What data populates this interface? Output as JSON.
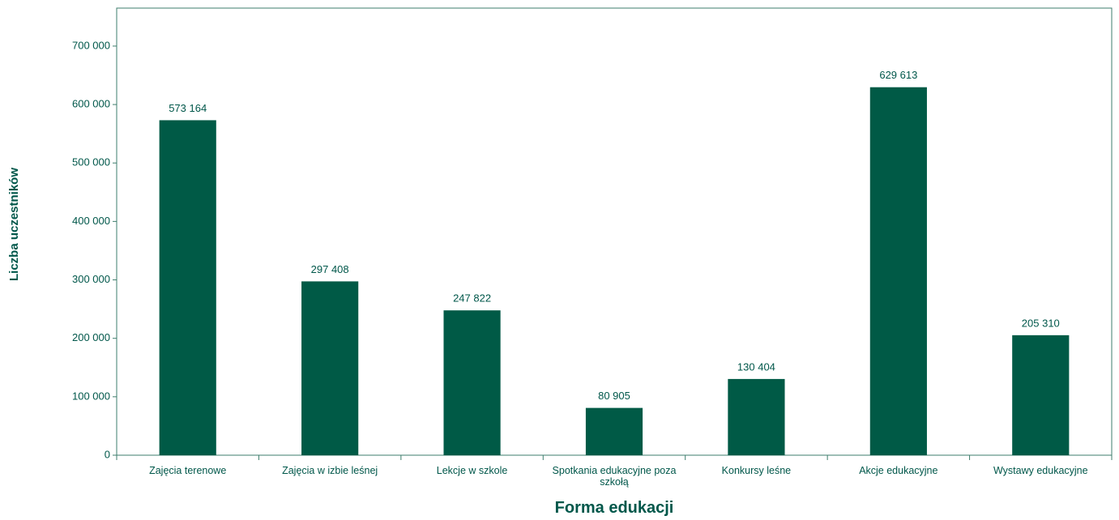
{
  "chart_data": {
    "type": "bar",
    "x_label": "Forma edukacji",
    "y_label": "Liczba uczestników",
    "categories": [
      "Zajęcia terenowe",
      "Zajęcia w izbie leśnej",
      "Lekcje w szkole",
      "Spotkania edukacyjne poza szkołą",
      "Konkursy leśne",
      "Akcje edukacyjne",
      "Wystawy edukacyjne"
    ],
    "values": [
      573164,
      297408,
      247822,
      80905,
      130404,
      629613,
      205310
    ],
    "value_labels": [
      "573 164",
      "297 408",
      "247 822",
      "80 905",
      "130 404",
      "629 613",
      "205 310"
    ],
    "color": "#005a46",
    "ylim": [
      0,
      765000
    ],
    "yticks": [
      0,
      {
        "value": 100000,
        "label": "100 000"
      },
      {
        "value": 200000,
        "label": "200 000"
      },
      {
        "value": 300000,
        "label": "300 000"
      },
      {
        "value": 400000,
        "label": "400 000"
      },
      {
        "value": 500000,
        "label": "500 000"
      },
      {
        "value": 600000,
        "label": "600 000"
      },
      {
        "value": 700000,
        "label": "700 000"
      }
    ]
  }
}
